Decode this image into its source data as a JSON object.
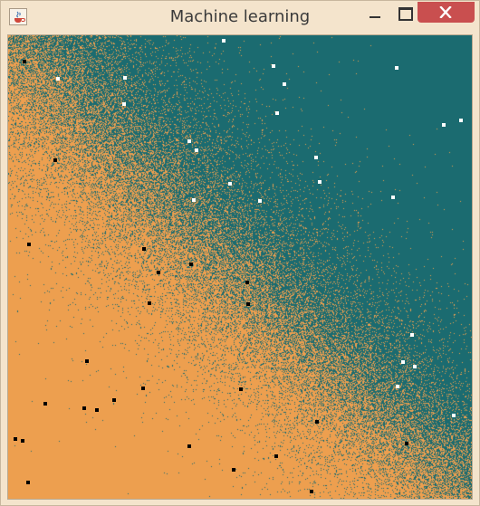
{
  "window": {
    "title": "Machine learning",
    "app_icon": "java-cup-icon",
    "controls": [
      "minimize-icon",
      "maximize-icon",
      "close-icon"
    ]
  },
  "plot": {
    "colors": {
      "class_a": "#1b6b70",
      "class_b": "#ed9f4f",
      "class_a_points": "#ffffff",
      "class_b_points": "#000000"
    }
  }
}
